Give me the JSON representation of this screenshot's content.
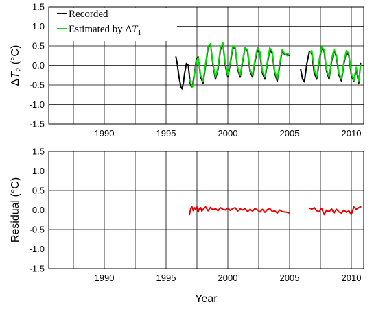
{
  "chart_data": [
    {
      "type": "line",
      "ylabel_prefix": "Δ",
      "ylabel_var": "T",
      "ylabel_sub": "2",
      "ylabel_unit": " (°C)",
      "xlim": [
        1985.5,
        2011
      ],
      "ylim": [
        -1.5,
        1.5
      ],
      "xticks": [
        1990,
        1995,
        2000,
        2005,
        2010
      ],
      "yticks": [
        1.5,
        1.0,
        0.5,
        0.0,
        -0.5,
        -1.0,
        -1.5
      ],
      "ytick_labels": [
        "1.5",
        "1.0",
        "0.5",
        "0.0",
        "-0.5",
        "-1.0",
        "-1.5"
      ],
      "grid": true,
      "legend_position": "top-left",
      "legend": [
        {
          "text": "Recorded",
          "color": "#000000"
        },
        {
          "text_prefix": "Estimated by Δ",
          "text_var": "T",
          "text_sub": "1",
          "color": "#00dd00"
        }
      ],
      "series": [
        {
          "name": "Recorded",
          "color": "#000000",
          "segments": [
            {
              "x": [
                1995.8,
                1995.9,
                1996.05,
                1996.2,
                1996.3,
                1996.4,
                1996.5,
                1996.65,
                1996.8,
                1996.95,
                1997.05,
                1997.15,
                1997.3,
                1997.45,
                1997.6,
                1997.8,
                1998.0,
                1998.2,
                1998.4,
                1998.6,
                1998.8,
                1999.0,
                1999.2,
                1999.4,
                1999.6,
                1999.8,
                2000.0,
                2000.2,
                2000.4,
                2000.6,
                2000.8,
                2001.0,
                2001.2,
                2001.4,
                2001.6,
                2001.8,
                2002.0,
                2002.2,
                2002.4,
                2002.6,
                2002.8,
                2003.0,
                2003.2,
                2003.4,
                2003.6,
                2003.8,
                2004.0,
                2004.2,
                2004.4,
                2004.6,
                2004.8,
                2005.0
              ],
              "y": [
                0.22,
                0.05,
                -0.3,
                -0.55,
                -0.6,
                -0.45,
                -0.2,
                0.05,
                0.0,
                -0.45,
                -0.55,
                -0.5,
                -0.2,
                0.15,
                0.22,
                -0.3,
                -0.45,
                0.0,
                0.45,
                0.55,
                0.0,
                -0.35,
                -0.1,
                0.4,
                0.55,
                0.0,
                -0.3,
                0.05,
                0.45,
                0.45,
                -0.1,
                -0.3,
                0.1,
                0.45,
                0.35,
                -0.15,
                -0.3,
                0.1,
                0.4,
                0.3,
                -0.2,
                -0.35,
                0.05,
                0.4,
                0.3,
                -0.2,
                -0.4,
                0.0,
                0.38,
                0.28,
                0.28,
                0.25
              ]
            },
            {
              "x": [
                2005.9,
                2006.05,
                2006.2,
                2006.4,
                2006.6,
                2006.8,
                2007.0,
                2007.2,
                2007.4,
                2007.6,
                2007.8,
                2008.0,
                2008.2,
                2008.4,
                2008.6,
                2008.8,
                2009.0,
                2009.2,
                2009.4,
                2009.6,
                2009.8,
                2010.0,
                2010.2,
                2010.4,
                2010.6,
                2010.75
              ],
              "y": [
                -0.1,
                -0.35,
                -0.42,
                0.05,
                0.35,
                0.3,
                -0.2,
                -0.35,
                0.1,
                0.45,
                0.35,
                -0.15,
                -0.35,
                0.1,
                0.4,
                0.2,
                -0.25,
                -0.4,
                0.05,
                0.35,
                0.25,
                -0.25,
                -0.4,
                -0.1,
                -0.45,
                0.05
              ]
            }
          ]
        },
        {
          "name": "Estimated",
          "color": "#00dd00",
          "segments": [
            {
              "x": [
                1996.9,
                1997.05,
                1997.15,
                1997.3,
                1997.45,
                1997.6,
                1997.8,
                1998.0,
                1998.2,
                1998.4,
                1998.6,
                1998.8,
                1999.0,
                1999.2,
                1999.4,
                1999.6,
                1999.8,
                2000.0,
                2000.2,
                2000.4,
                2000.6,
                2000.8,
                2001.0,
                2001.2,
                2001.4,
                2001.6,
                2001.8,
                2002.0,
                2002.2,
                2002.4,
                2002.6,
                2002.8,
                2003.0,
                2003.2,
                2003.4,
                2003.6,
                2003.8,
                2004.0,
                2004.2,
                2004.4,
                2004.6,
                2004.8,
                2005.0
              ],
              "y": [
                -0.35,
                -0.5,
                -0.55,
                -0.25,
                0.1,
                0.2,
                -0.25,
                -0.4,
                0.05,
                0.5,
                0.55,
                0.05,
                -0.3,
                -0.05,
                0.45,
                0.58,
                0.05,
                -0.25,
                0.1,
                0.5,
                0.45,
                -0.05,
                -0.25,
                0.15,
                0.45,
                0.4,
                -0.1,
                -0.25,
                0.15,
                0.45,
                0.35,
                -0.15,
                -0.3,
                0.1,
                0.45,
                0.35,
                -0.15,
                -0.35,
                0.05,
                0.4,
                0.3,
                0.25,
                0.3
              ]
            },
            {
              "x": [
                2006.6,
                2006.8,
                2007.0,
                2007.2,
                2007.4,
                2007.6,
                2007.8,
                2008.0,
                2008.2,
                2008.4,
                2008.6,
                2008.8,
                2009.0,
                2009.2,
                2009.4,
                2009.6,
                2009.8,
                2010.0,
                2010.2,
                2010.4,
                2010.6,
                2010.75
              ],
              "y": [
                0.3,
                0.38,
                -0.1,
                -0.3,
                0.15,
                0.48,
                0.4,
                -0.1,
                -0.3,
                0.15,
                0.42,
                0.25,
                -0.2,
                -0.35,
                0.1,
                0.38,
                0.3,
                -0.2,
                -0.38,
                -0.05,
                -0.4,
                0.0
              ]
            }
          ]
        }
      ]
    },
    {
      "type": "line",
      "ylabel": "Residual (°C)",
      "xlabel": "Year",
      "xlim": [
        1985.5,
        2011
      ],
      "ylim": [
        -1.5,
        1.5
      ],
      "xticks": [
        1990,
        1995,
        2000,
        2005,
        2010
      ],
      "yticks": [
        1.5,
        1.0,
        0.5,
        0.0,
        -0.5,
        -1.0,
        -1.5
      ],
      "ytick_labels": [
        "1.5",
        "1.0",
        "0.5",
        "0.0",
        "-0.5",
        "-1.0",
        "-1.5"
      ],
      "grid": true,
      "series": [
        {
          "name": "Residual",
          "color": "#ee0000",
          "segments": [
            {
              "x": [
                1996.9,
                1997.0,
                1997.1,
                1997.2,
                1997.3,
                1997.4,
                1997.5,
                1997.6,
                1997.7,
                1997.8,
                1997.9,
                1998.0,
                1998.2,
                1998.4,
                1998.6,
                1998.8,
                1999.0,
                1999.2,
                1999.4,
                1999.6,
                1999.8,
                2000.0,
                2000.2,
                2000.4,
                2000.6,
                2000.8,
                2001.0,
                2001.2,
                2001.4,
                2001.6,
                2001.8,
                2002.0,
                2002.2,
                2002.4,
                2002.6,
                2002.8,
                2003.0,
                2003.2,
                2003.4,
                2003.6,
                2003.8,
                2004.0,
                2004.2,
                2004.4,
                2004.6,
                2004.8,
                2005.0
              ],
              "y": [
                -0.12,
                0.05,
                0.08,
                -0.02,
                0.06,
                0.02,
                0.08,
                -0.05,
                0.04,
                0.06,
                -0.03,
                0.02,
                0.08,
                -0.02,
                0.07,
                0.0,
                0.04,
                -0.02,
                0.06,
                0.02,
                0.0,
                0.05,
                -0.01,
                0.04,
                0.06,
                -0.03,
                0.03,
                0.0,
                0.04,
                -0.04,
                0.02,
                -0.03,
                0.04,
                0.0,
                -0.05,
                0.02,
                -0.06,
                0.01,
                0.04,
                -0.04,
                -0.02,
                -0.08,
                0.0,
                -0.04,
                -0.05,
                -0.06,
                -0.08
              ]
            },
            {
              "x": [
                2006.6,
                2006.8,
                2007.0,
                2007.2,
                2007.4,
                2007.6,
                2007.8,
                2008.0,
                2008.2,
                2008.4,
                2008.6,
                2008.8,
                2009.0,
                2009.2,
                2009.4,
                2009.6,
                2009.8,
                2010.0,
                2010.2,
                2010.4,
                2010.6,
                2010.75
              ],
              "y": [
                0.05,
                0.02,
                0.06,
                -0.02,
                -0.04,
                0.04,
                -0.12,
                0.0,
                -0.05,
                0.03,
                -0.08,
                0.02,
                -0.05,
                -0.08,
                0.0,
                -0.06,
                -0.02,
                -0.12,
                0.08,
                0.02,
                0.06,
                0.08
              ]
            }
          ]
        }
      ]
    }
  ]
}
